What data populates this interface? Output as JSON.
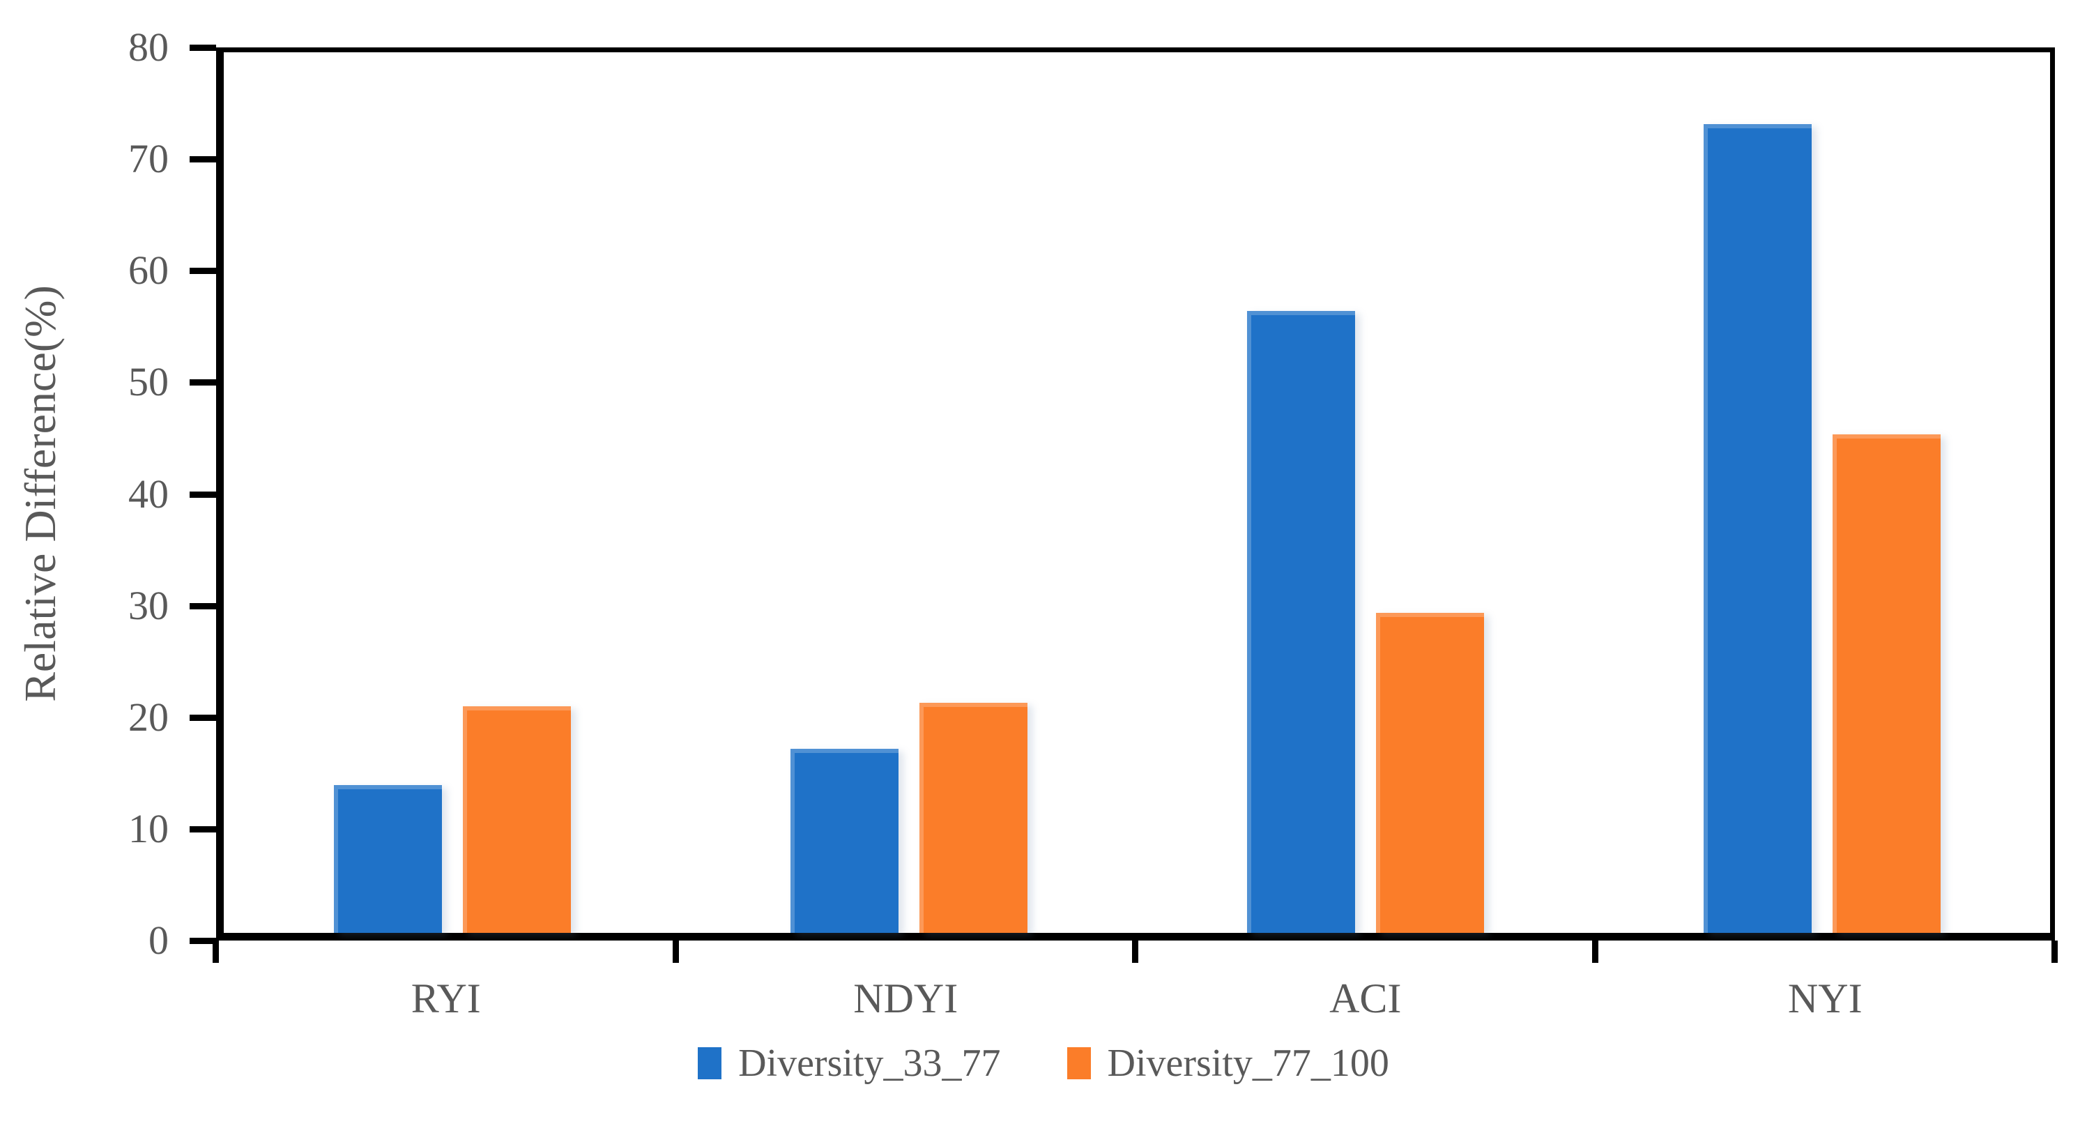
{
  "chart_data": {
    "type": "bar",
    "title": "",
    "ylabel": "Relative Difference(%)",
    "xlabel": "",
    "categories": [
      "RYI",
      "NDYI",
      "ACI",
      "NYI"
    ],
    "series": [
      {
        "name": "Diversity_33_77",
        "color": "#1F72C8",
        "values": [
          13.4,
          16.7,
          56.5,
          73.5
        ]
      },
      {
        "name": "Diversity_77_100",
        "color": "#FB7D29",
        "values": [
          20.6,
          20.9,
          29.1,
          45.3
        ]
      }
    ],
    "ylim": [
      0,
      80
    ],
    "yticks": [
      0,
      10,
      20,
      30,
      40,
      50,
      60,
      70,
      80
    ],
    "grid": false,
    "plot_border": "full-box",
    "legend_position": "bottom-center",
    "axis_line_color": "#000000",
    "label_color": "#595959",
    "background_color": "#FFFFFF"
  }
}
